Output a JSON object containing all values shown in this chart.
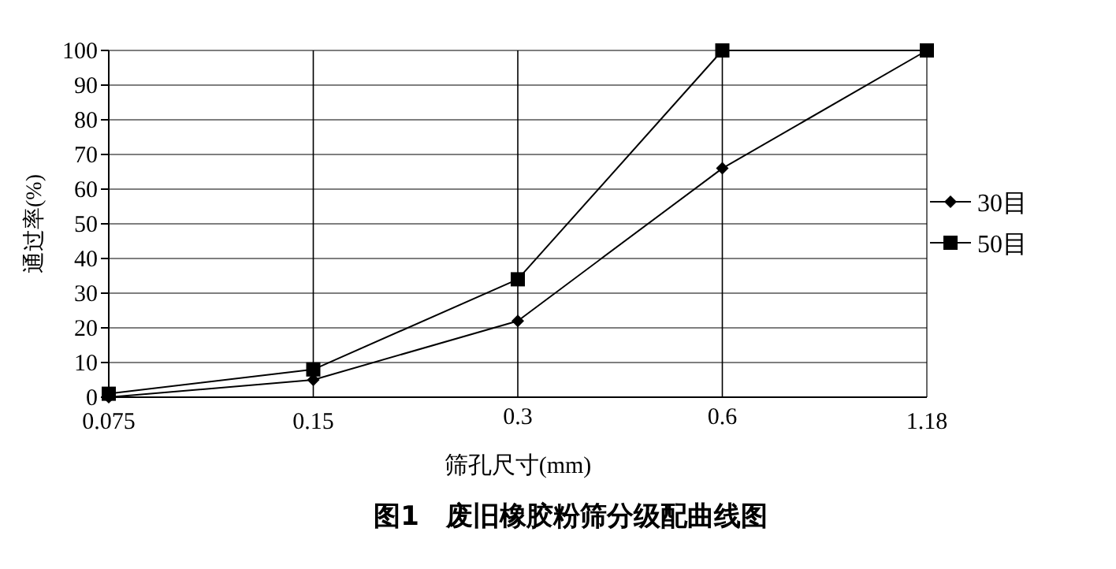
{
  "chart_data": {
    "type": "line",
    "ylabel": "通过率(%)",
    "xlabel": "筛孔尺寸(mm)",
    "categories": [
      "0.075",
      "0.15",
      "0.3",
      "0.6",
      "1.18"
    ],
    "series": [
      {
        "name": "30目",
        "color": "#000000",
        "marker": "diamond",
        "values": [
          0,
          5,
          22,
          66,
          100
        ]
      },
      {
        "name": "50目",
        "color": "#000000",
        "marker": "square",
        "values": [
          1,
          8,
          34,
          100,
          100
        ]
      }
    ],
    "ylim": [
      0,
      100
    ],
    "yticks": [
      0,
      10,
      20,
      30,
      40,
      50,
      60,
      70,
      80,
      90,
      100
    ],
    "grid": true,
    "legend": "right",
    "line_style": "solid",
    "annotations": [
      "图1　废旧橡胶粉筛分级配曲线图"
    ]
  }
}
